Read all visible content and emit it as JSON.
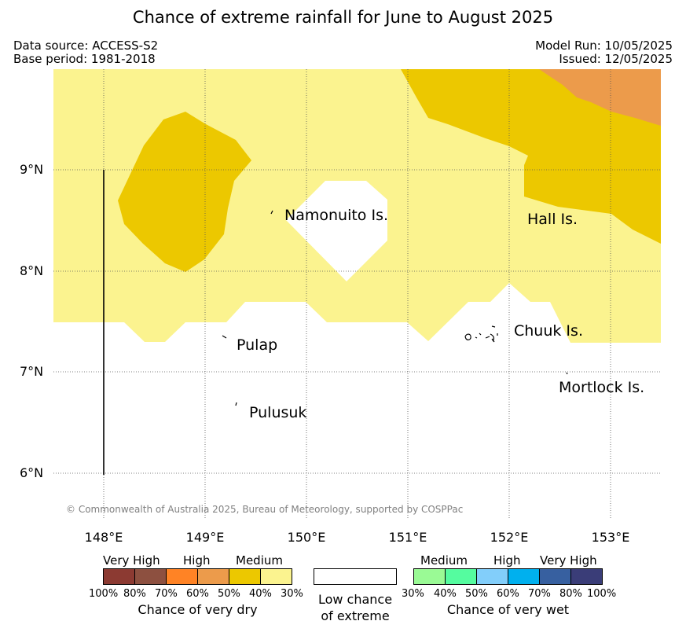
{
  "title": "Chance of extreme rainfall for June to August 2025",
  "meta": {
    "data_source": "Data source: ACCESS-S2",
    "base_period": "Base period: 1981-2018",
    "model_run": "Model Run: 10/05/2025",
    "issued": "Issued: 12/05/2025"
  },
  "map": {
    "lat_labels": [
      "9°N",
      "8°N",
      "7°N",
      "6°N"
    ],
    "lon_labels": [
      "148°E",
      "149°E",
      "150°E",
      "151°E",
      "152°E",
      "153°E"
    ],
    "places": [
      "Namonuito Is.",
      "Hall Is.",
      "Pulap",
      "Chuuk Is.",
      "Mortlock Is.",
      "Pulusuk"
    ],
    "copyright": "© Commonwealth of Australia 2025, Bureau of Meteorology, supported by COSPPac",
    "colors": {
      "dry_30_40": "#fbf38f",
      "dry_40_50": "#ecc800",
      "dry_50_60": "#ec9b4b",
      "no_data_low": "#ffffff"
    }
  },
  "legend": {
    "dry": {
      "categories": [
        "Very High",
        "High",
        "Medium"
      ],
      "ticks": [
        "100%",
        "80%",
        "70%",
        "60%",
        "50%",
        "40%",
        "30%"
      ],
      "caption": "Chance of very dry",
      "colors": [
        "#8c3a32",
        "#8d5040",
        "#ff8325",
        "#ec9b4b",
        "#ecc800",
        "#fbf38f"
      ]
    },
    "low": {
      "caption_line1": "Low chance",
      "caption_line2": "of extreme",
      "color": "#ffffff"
    },
    "wet": {
      "categories": [
        "Medium",
        "High",
        "Very High"
      ],
      "ticks": [
        "30%",
        "40%",
        "50%",
        "60%",
        "70%",
        "80%",
        "100%"
      ],
      "caption": "Chance of very wet",
      "colors": [
        "#9afa95",
        "#55fc9f",
        "#82cefa",
        "#00b0ee",
        "#3760a0",
        "#3a3d78"
      ]
    }
  }
}
